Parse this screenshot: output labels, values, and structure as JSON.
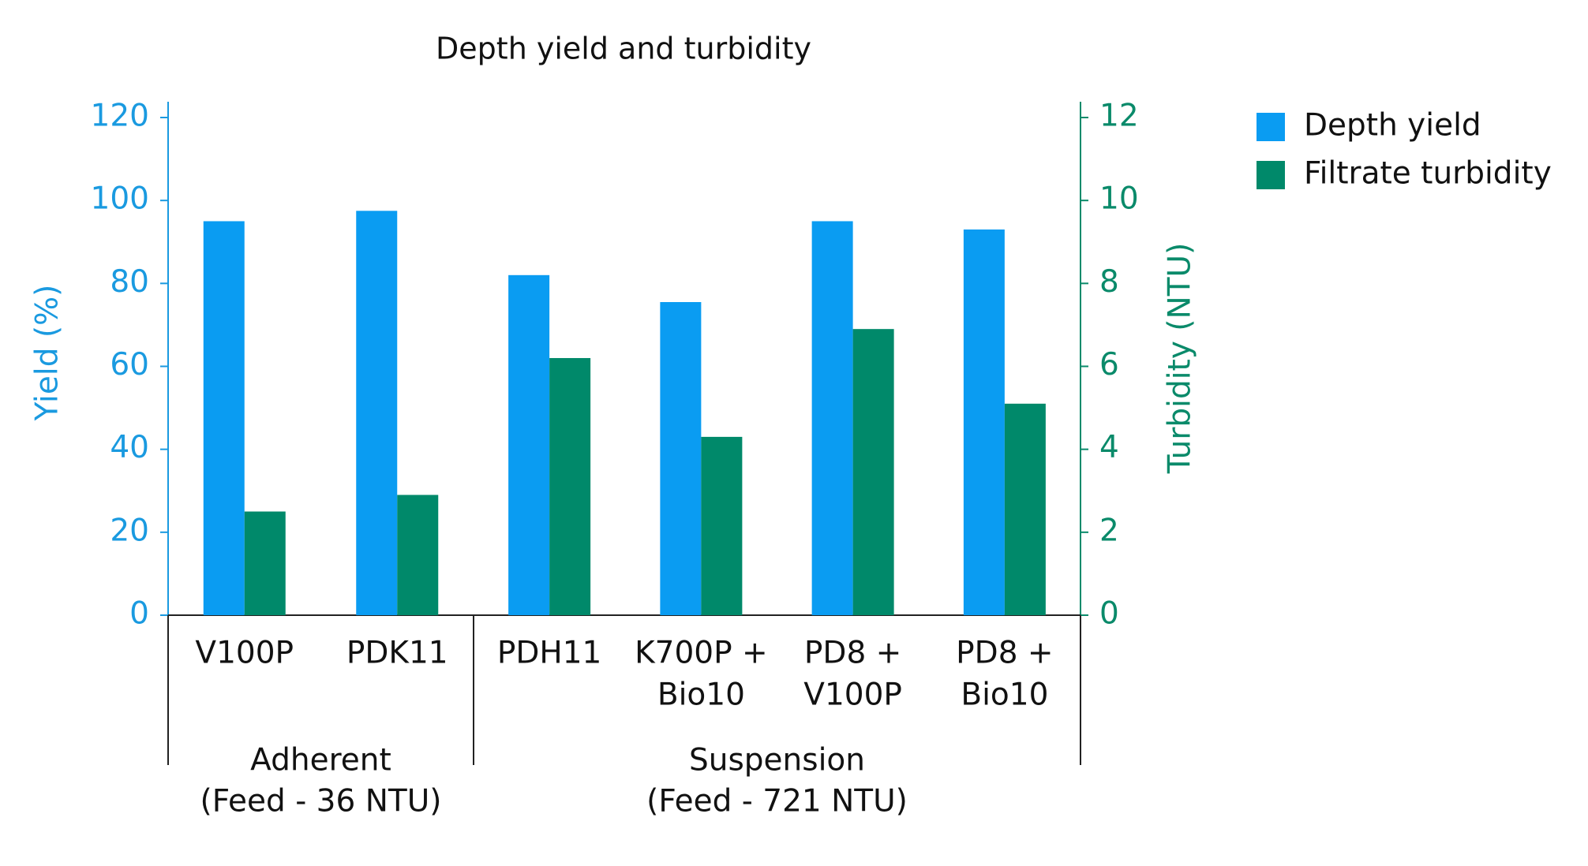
{
  "chart_data": {
    "type": "bar",
    "title": "Depth yield and turbidity",
    "y_label": "Yield (%)",
    "y2_label": "Turbidity (NTU)",
    "groups": [
      {
        "label": [
          "Adherent",
          "(Feed - 36 NTU)"
        ],
        "categories": [
          [
            "V100P"
          ],
          [
            "PDK11"
          ]
        ]
      },
      {
        "label": [
          "Suspension",
          "(Feed - 721 NTU)"
        ],
        "categories": [
          [
            "PDH11"
          ],
          [
            "K700P +",
            "Bio10"
          ],
          [
            "PD8 +",
            "V100P"
          ],
          [
            "PD8 +",
            "Bio10"
          ]
        ]
      }
    ],
    "series": [
      {
        "name": "Depth yield",
        "color": "#0a9cf2",
        "values": [
          95,
          97.5,
          82,
          75.5,
          95,
          93
        ]
      },
      {
        "name": "Filtrate turbidity",
        "color": "#00896a",
        "axis": "y2",
        "values": [
          2.5,
          2.9,
          6.2,
          4.3,
          6.9,
          5.1
        ]
      }
    ],
    "ylim": [
      0,
      120
    ],
    "yticks": [
      0,
      20,
      40,
      60,
      80,
      100,
      120
    ],
    "y_color": "#1a9ae0",
    "y2lim": [
      0,
      12
    ],
    "y2ticks": [
      0,
      2,
      4,
      6,
      8,
      10,
      12
    ],
    "y2_color": "#0a8a6a",
    "legend": "right"
  }
}
